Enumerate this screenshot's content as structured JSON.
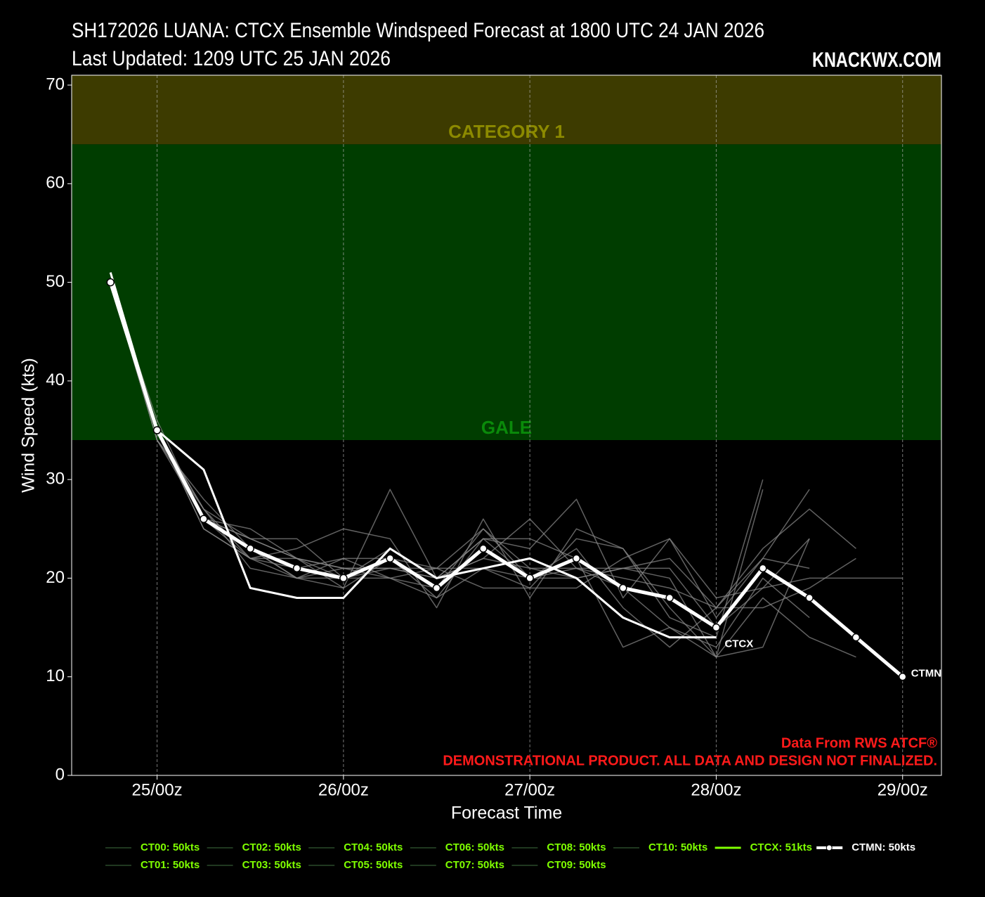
{
  "chart_data": {
    "type": "line",
    "title": "SH172026 LUANA: CTCX Ensemble Windspeed Forecast at 1800 UTC 24 JAN 2026",
    "subtitle": "Last Updated: 1209 UTC 25 JAN 2026",
    "brand": "KNACKWX.COM",
    "xlabel": "Forecast Time",
    "ylabel": "Wind Speed (kts)",
    "notes": [
      "Data From RWS ATCF®",
      "DEMONSTRATIONAL PRODUCT. ALL DATA AND DESIGN NOT FINALIZED."
    ],
    "note_color": "#ff1a1a",
    "x": [
      -6,
      0,
      6,
      12,
      18,
      24,
      30,
      36,
      42,
      48,
      54,
      60,
      66,
      72,
      78,
      84,
      90,
      96
    ],
    "xlim": [
      -11,
      101
    ],
    "xticks": [
      {
        "value": 0,
        "label": "25/00z"
      },
      {
        "value": 24,
        "label": "26/00z"
      },
      {
        "value": 48,
        "label": "27/00z"
      },
      {
        "value": 72,
        "label": "28/00z"
      },
      {
        "value": 96,
        "label": "29/00z"
      }
    ],
    "ylim": [
      0,
      71
    ],
    "yticks": [
      0,
      10,
      20,
      30,
      40,
      50,
      60,
      70
    ],
    "grid": "x",
    "bands": [
      {
        "name": "GALE",
        "from": 34,
        "to": 64,
        "color": "#003d00",
        "label_color": "#0a8a0a"
      },
      {
        "name": "CATEGORY 1",
        "from": 64,
        "to": 71,
        "color": "#3d3b00",
        "label_color": "#8c8a00"
      }
    ],
    "series": [
      {
        "name": "CT00",
        "legend_label": "CT00: 50kts",
        "color": "#8a8a8a",
        "legend_color": "#2b4a2b",
        "values": [
          50,
          34,
          27,
          24,
          22,
          21,
          21,
          20,
          22,
          21,
          20,
          21,
          22,
          17,
          23,
          27,
          23,
          null
        ]
      },
      {
        "name": "CT01",
        "legend_label": "CT01: 50kts",
        "color": "#8a8a8a",
        "legend_color": "#2b4a2b",
        "values": [
          50,
          35,
          26,
          25,
          22,
          20,
          20,
          21,
          25,
          20,
          21,
          19,
          15,
          12,
          13,
          24,
          null,
          null
        ]
      },
      {
        "name": "CT02",
        "legend_label": "CT02: 50kts",
        "color": "#8a8a8a",
        "legend_color": "#2b4a2b",
        "values": [
          50,
          34,
          28,
          23,
          20,
          19,
          29,
          20,
          24,
          23,
          28,
          18,
          24,
          16,
          22,
          29,
          null,
          null
        ]
      },
      {
        "name": "CT03",
        "legend_label": "CT03: 50kts",
        "color": "#8a8a8a",
        "legend_color": "#2b4a2b",
        "values": [
          50,
          35,
          25,
          22,
          23,
          25,
          24,
          17,
          26,
          18,
          25,
          23,
          16,
          14,
          30,
          null,
          null,
          null
        ]
      },
      {
        "name": "CT04",
        "legend_label": "CT04: 50kts",
        "color": "#8a8a8a",
        "legend_color": "#2b4a2b",
        "values": [
          50,
          35,
          26,
          24,
          22,
          21,
          20,
          18,
          24,
          24,
          22,
          13,
          15,
          13,
          20,
          16,
          null,
          null
        ]
      },
      {
        "name": "CT05",
        "legend_label": "CT05: 50kts",
        "color": "#8a8a8a",
        "legend_color": "#2b4a2b",
        "values": [
          50,
          36,
          26,
          24,
          24,
          20,
          21,
          20,
          22,
          26,
          21,
          21,
          20,
          12,
          29,
          null,
          null,
          null
        ]
      },
      {
        "name": "CT06",
        "legend_label": "CT06: 50kts",
        "color": "#8a8a8a",
        "legend_color": "#2b4a2b",
        "values": [
          50,
          35,
          27,
          21,
          20,
          22,
          22,
          21,
          19,
          19,
          19,
          22,
          24,
          18,
          19,
          20,
          20,
          20
        ]
      },
      {
        "name": "CT07",
        "legend_label": "CT07: 50kts",
        "color": "#8a8a8a",
        "legend_color": "#2b4a2b",
        "values": [
          50,
          34,
          26,
          23,
          20,
          21,
          21,
          21,
          21,
          19,
          24,
          23,
          17,
          12,
          18,
          14,
          12,
          null
        ]
      },
      {
        "name": "CT08",
        "legend_label": "CT08: 50kts",
        "color": "#8a8a8a",
        "legend_color": "#2b4a2b",
        "values": [
          50,
          35,
          25,
          22,
          21,
          22,
          20,
          19,
          25,
          21,
          21,
          20,
          19,
          17,
          17,
          19,
          22,
          null
        ]
      },
      {
        "name": "CT09",
        "legend_label": "CT09: 50kts",
        "color": "#8a8a8a",
        "legend_color": "#2b4a2b",
        "values": [
          50,
          35,
          26,
          22,
          20,
          20,
          23,
          20,
          24,
          20,
          23,
          17,
          13,
          17,
          22,
          21,
          null,
          null
        ]
      },
      {
        "name": "CT10",
        "legend_label": "CT10: 50kts",
        "color": "#8a8a8a",
        "legend_color": "#2b4a2b",
        "values": [
          50,
          35,
          27,
          22,
          22,
          19,
          22,
          18,
          21,
          20,
          20,
          21,
          21,
          15,
          19,
          24,
          null,
          null
        ]
      },
      {
        "name": "CTCX",
        "legend_label": "CTCX: 51kts",
        "color": "#ffffff",
        "legend_color": "#7fff00",
        "width": 3,
        "end_label": true,
        "values": [
          51,
          35,
          31,
          19,
          18,
          18,
          23,
          20,
          21,
          22,
          20,
          16,
          14,
          14,
          null,
          null,
          null,
          null
        ]
      },
      {
        "name": "CTMN",
        "legend_label": "CTMN: 50kts",
        "color": "#ffffff",
        "legend_color": "#ffffff",
        "width": 5,
        "markers": true,
        "end_label": true,
        "values": [
          50,
          35,
          26,
          23,
          21,
          20,
          22,
          19,
          23,
          20,
          22,
          19,
          18,
          15,
          21,
          18,
          14,
          10
        ]
      }
    ]
  }
}
